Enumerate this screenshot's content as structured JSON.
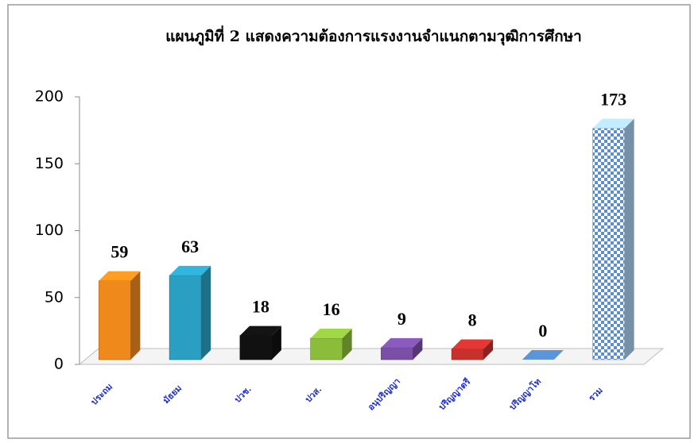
{
  "chart_data": {
    "type": "bar3d",
    "title": "แผนภูมิที่ 2 แสดงความต้องการแรงงานจำแนกตามวุฒิการศึกษา",
    "categories": [
      "ประถม",
      "มัธยม",
      "ปวช.",
      "ปวส.",
      "อนุปริญญา",
      "ปริญญาตรี",
      "ปริญญาโท",
      "รวม"
    ],
    "values": [
      59,
      63,
      18,
      16,
      9,
      8,
      0,
      173
    ],
    "colors": [
      "#f0891c",
      "#2b9fc2",
      "#111111",
      "#8bbd3b",
      "#7a4fa6",
      "#c7302d",
      "#4f81bd",
      "#a9cdf0"
    ],
    "ylim": [
      0,
      200
    ],
    "yticks": [
      0,
      50,
      100,
      150,
      200
    ]
  }
}
